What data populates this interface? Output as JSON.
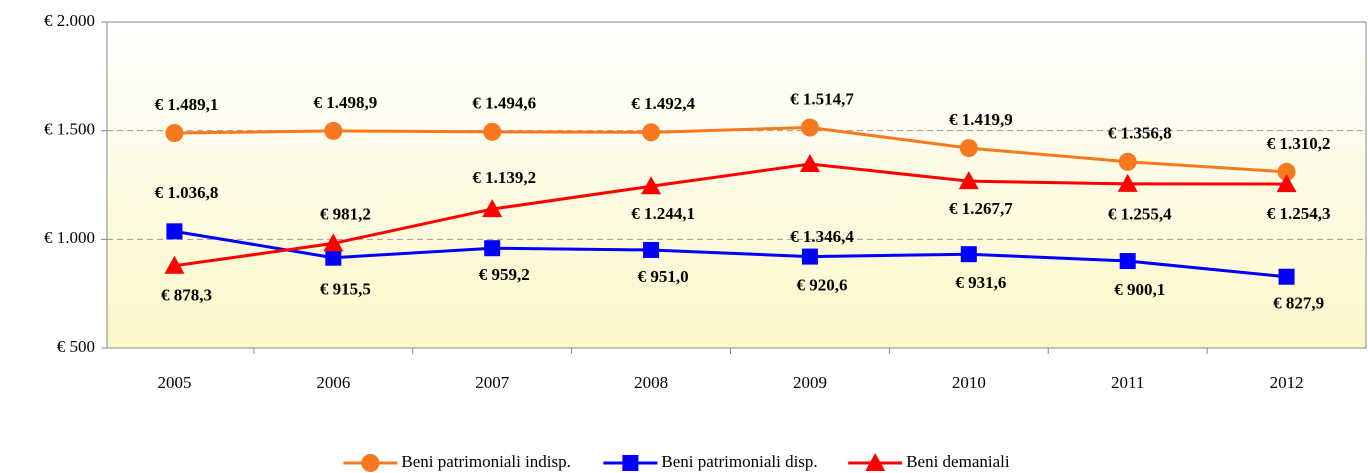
{
  "chart_data": {
    "type": "line",
    "categories": [
      "2005",
      "2006",
      "2007",
      "2008",
      "2009",
      "2010",
      "2011",
      "2012"
    ],
    "series": [
      {
        "name": "Beni patrimoniali indisp.",
        "color": "#f7791f",
        "marker": "circle",
        "values": [
          1489.1,
          1498.9,
          1494.6,
          1492.4,
          1514.7,
          1419.9,
          1356.8,
          1310.2
        ],
        "value_labels": [
          "€ 1.489,1",
          "€ 1.498,9",
          "€ 1.494,6",
          "€ 1.492,4",
          "€ 1.514,7",
          "€ 1.419,9",
          "€ 1.356,8",
          "€ 1.310,2"
        ]
      },
      {
        "name": "Beni patrimoniali disp.",
        "color": "#0000ff",
        "marker": "square",
        "values": [
          1036.8,
          915.5,
          959.2,
          951.0,
          920.6,
          931.6,
          900.1,
          827.9
        ],
        "value_labels": [
          "€ 1.036,8",
          "€ 915,5",
          "€ 959,2",
          "€ 951,0",
          "€ 920,6",
          "€ 931,6",
          "€ 900,1",
          "€ 827,9"
        ]
      },
      {
        "name": "Beni demaniali",
        "color": "#ff0000",
        "marker": "triangle",
        "values": [
          878.3,
          981.2,
          1139.2,
          1244.1,
          1346.4,
          1267.7,
          1255.4,
          1254.3
        ],
        "value_labels": [
          "€ 878,3",
          "€ 981,2",
          "€ 1.139,2",
          "€ 1.244,1",
          "€ 1.346,4",
          "€ 1.267,7",
          "€ 1.255,4",
          "€ 1.254,3"
        ]
      }
    ],
    "ylim": [
      500,
      2000
    ],
    "yticks": [
      {
        "value": 500,
        "label": "€ 500"
      },
      {
        "value": 1000,
        "label": "€ 1.000"
      },
      {
        "value": 1500,
        "label": "€ 1.500"
      },
      {
        "value": 2000,
        "label": "€ 2.000"
      }
    ],
    "grid": true,
    "legend": "bottom"
  }
}
